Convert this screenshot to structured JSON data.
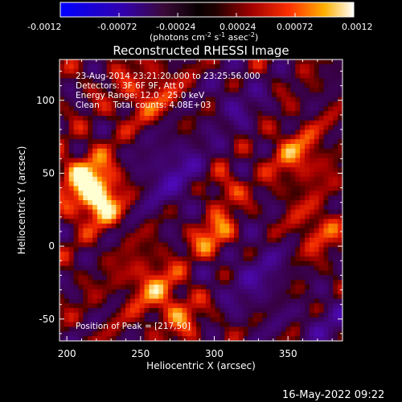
{
  "colorbar": {
    "ticks": [
      "-0.0012",
      "-0.00072",
      "-0.00024",
      "0.00024",
      "0.00072",
      "0.0012"
    ],
    "unit_main": "(photons cm",
    "unit_sup1": "-2",
    "unit_mid1": " s",
    "unit_sup2": "-1",
    "unit_mid2": " asec",
    "unit_sup3": "-2",
    "unit_end": ")"
  },
  "chart_data": {
    "type": "heatmap",
    "title": "Reconstructed RHESSI Image",
    "xlabel": "Heliocentric X (arcsec)",
    "ylabel": "Heliocentric Y (arcsec)",
    "xlim": [
      195,
      387
    ],
    "ylim": [
      -65,
      128
    ],
    "xticks": [
      200,
      250,
      300,
      350
    ],
    "yticks": [
      -50,
      0,
      50,
      100
    ],
    "colormap": "hot-blue",
    "value_range": [
      -0.0012,
      0.0012
    ],
    "peak_position": [
      217,
      50
    ],
    "annotations": [
      "23-Aug-2014 23:21:20.000 to 23:25:56.000",
      "Detectors: 3F 6F 9F, Att 0",
      "Energy Range: 12.0 - 25.0 keV",
      "Clean     Total counts: 4.08E+03"
    ],
    "peak_label": "Position of Peak = [217,50]",
    "footer_date": "16-May-2022 09:22"
  }
}
